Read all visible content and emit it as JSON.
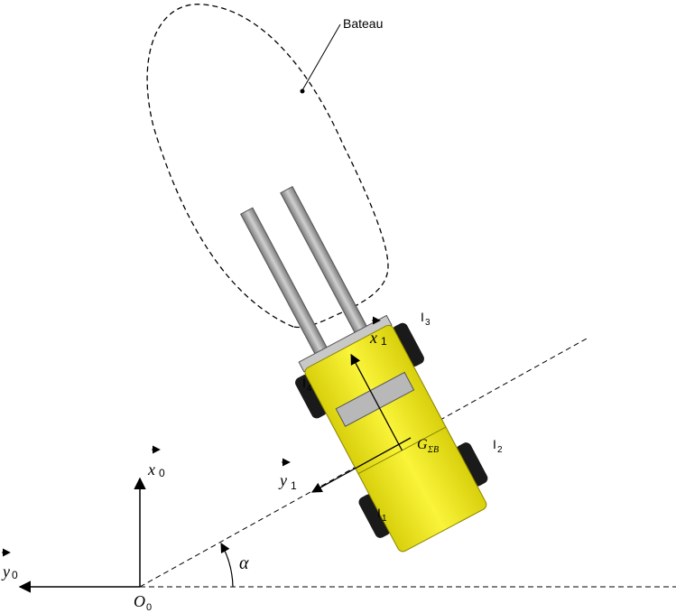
{
  "diagram": {
    "boat_label": "Bateau",
    "axis_x0": "x",
    "axis_x0_sub": "0",
    "axis_y0": "y",
    "axis_y0_sub": "0",
    "origin": "O",
    "origin_sub": "0",
    "axis_x1": "x",
    "axis_x1_sub": "1",
    "axis_y1": "y",
    "axis_y1_sub": "1",
    "angle": "α",
    "cog": "G",
    "cog_sub": "ΣB",
    "wheel_1": "I",
    "wheel_1_sub": "1",
    "wheel_2": "I",
    "wheel_2_sub": "2",
    "wheel_3": "I",
    "wheel_3_sub": "3",
    "wheel_4": "I",
    "wheel_4_sub": "4"
  },
  "colors": {
    "body": "#f5ee1c",
    "body_dark": "#c9c20a",
    "tire": "#1a1a1a",
    "fork": "#a8a8a8",
    "line": "#000000"
  }
}
